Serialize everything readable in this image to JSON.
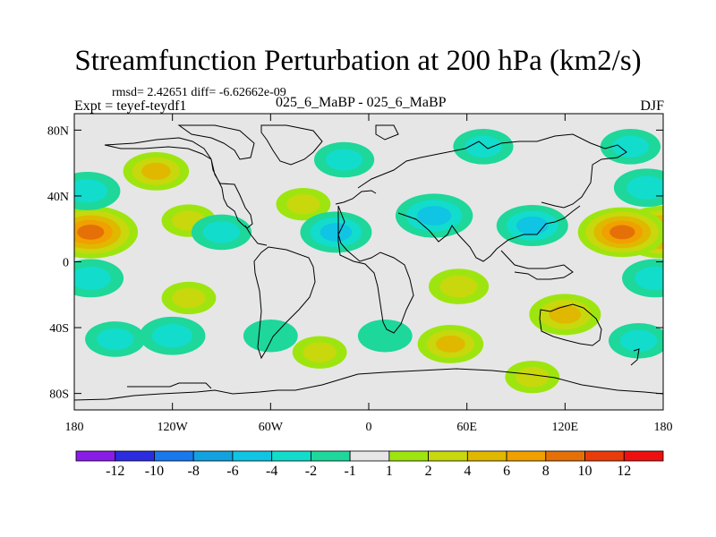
{
  "chart_data": {
    "type": "heatmap",
    "title": "Streamfunction Perturbation at 200 hPa (km2/s)",
    "stats_text": "rmsd= 2.42651  diff= -6.62662e-09",
    "left_label": "Expt = teyef-teydf1",
    "center_label": "025_6_MaBP - 025_6_MaBP",
    "right_label": "DJF",
    "x_axis": {
      "range": [
        -180,
        180
      ],
      "ticks": [
        -180,
        -120,
        -60,
        0,
        60,
        120,
        180
      ],
      "tick_labels": [
        "180",
        "120W",
        "60W",
        "0",
        "60E",
        "120E",
        "180"
      ]
    },
    "y_axis": {
      "range": [
        -90,
        90
      ],
      "ticks": [
        80,
        40,
        0,
        -40,
        -80
      ],
      "tick_labels": [
        "80N",
        "40N",
        "0",
        "40S",
        "80S"
      ]
    },
    "colorbar": {
      "labels": [
        "-12",
        "-10",
        "-8",
        "-6",
        "-4",
        "-2",
        "-1",
        "1",
        "2",
        "4",
        "6",
        "8",
        "10",
        "12"
      ],
      "colors": [
        "#8a1ce8",
        "#2c2ce0",
        "#1a78ee",
        "#12a2e0",
        "#10c4e4",
        "#12dccc",
        "#1ed79a",
        "#e6e6e6",
        "#9ee510",
        "#c8d80c",
        "#e0b800",
        "#f0a000",
        "#e67008",
        "#e83c0c",
        "#ee1010"
      ]
    },
    "field": {
      "description": "Streamfunction perturbation anomalies (km2/s) as lon/lat centers with peak values",
      "features": [
        {
          "lon": -170,
          "lat": 18,
          "value": 9
        },
        {
          "lon": 180,
          "lat": 18,
          "value": 9
        },
        {
          "lon": 155,
          "lat": 18,
          "value": 8
        },
        {
          "lon": -130,
          "lat": 55,
          "value": 4
        },
        {
          "lon": -110,
          "lat": 25,
          "value": 2
        },
        {
          "lon": -40,
          "lat": 35,
          "value": 2
        },
        {
          "lon": -15,
          "lat": 62,
          "value": -3
        },
        {
          "lon": 70,
          "lat": 70,
          "value": -3
        },
        {
          "lon": 160,
          "lat": 70,
          "value": -3
        },
        {
          "lon": 170,
          "lat": 45,
          "value": -4
        },
        {
          "lon": -172,
          "lat": 43,
          "value": -4
        },
        {
          "lon": -20,
          "lat": 18,
          "value": -5
        },
        {
          "lon": 40,
          "lat": 28,
          "value": -6
        },
        {
          "lon": 100,
          "lat": 22,
          "value": -5
        },
        {
          "lon": -90,
          "lat": 18,
          "value": -3
        },
        {
          "lon": -170,
          "lat": -10,
          "value": -4
        },
        {
          "lon": 175,
          "lat": -10,
          "value": -4
        },
        {
          "lon": -110,
          "lat": -22,
          "value": 2
        },
        {
          "lon": 55,
          "lat": -15,
          "value": 3
        },
        {
          "lon": 120,
          "lat": -32,
          "value": 5
        },
        {
          "lon": -155,
          "lat": -47,
          "value": -3
        },
        {
          "lon": -120,
          "lat": -45,
          "value": -4
        },
        {
          "lon": -60,
          "lat": -45,
          "value": -2
        },
        {
          "lon": 10,
          "lat": -45,
          "value": -2
        },
        {
          "lon": 50,
          "lat": -50,
          "value": 4
        },
        {
          "lon": 165,
          "lat": -48,
          "value": -3
        },
        {
          "lon": -30,
          "lat": -55,
          "value": 2
        },
        {
          "lon": 100,
          "lat": -70,
          "value": 2
        }
      ]
    }
  }
}
